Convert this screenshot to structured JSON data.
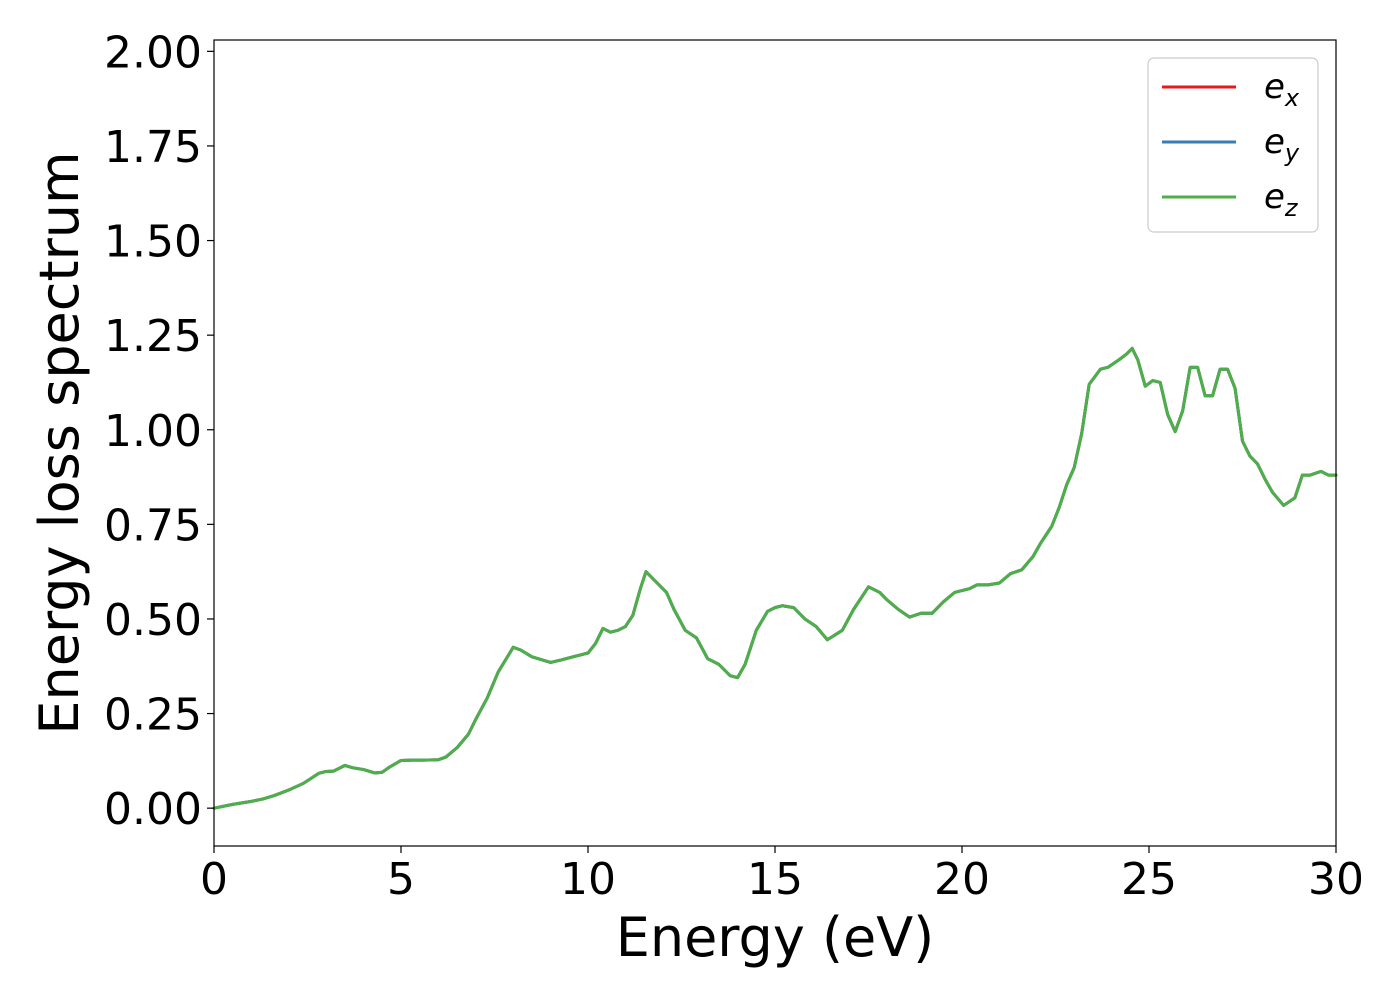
{
  "chart_data": {
    "type": "line",
    "title": "",
    "xlabel": "Energy (eV)",
    "ylabel": "Energy loss spectrum",
    "xlim": [
      0,
      30
    ],
    "ylim": [
      -0.1,
      2.03
    ],
    "x_ticks": [
      "0",
      "5",
      "10",
      "15",
      "20",
      "25",
      "30"
    ],
    "x_tick_values": [
      0,
      5,
      10,
      15,
      20,
      25,
      30
    ],
    "y_ticks": [
      "0.00",
      "0.25",
      "0.50",
      "0.75",
      "1.00",
      "1.25",
      "1.50",
      "1.75",
      "2.00"
    ],
    "y_tick_values": [
      0,
      0.25,
      0.5,
      0.75,
      1.0,
      1.25,
      1.5,
      1.75,
      2.0
    ],
    "grid": false,
    "legend_position": "top-right",
    "x": [
      0,
      0.5,
      1.0,
      1.3,
      1.6,
      2.0,
      2.4,
      2.8,
      3.0,
      3.2,
      3.5,
      3.7,
      4.0,
      4.3,
      4.5,
      4.7,
      5.0,
      5.3,
      5.6,
      6.0,
      6.2,
      6.5,
      6.8,
      7.0,
      7.3,
      7.6,
      8.0,
      8.2,
      8.5,
      9.0,
      9.3,
      9.6,
      9.8,
      10.0,
      10.2,
      10.4,
      10.6,
      10.8,
      11.0,
      11.2,
      11.4,
      11.55,
      11.8,
      12.1,
      12.3,
      12.6,
      12.9,
      13.2,
      13.5,
      13.8,
      14.0,
      14.2,
      14.5,
      14.8,
      15.0,
      15.2,
      15.5,
      15.8,
      16.1,
      16.4,
      16.8,
      17.1,
      17.5,
      17.8,
      18.0,
      18.3,
      18.6,
      18.9,
      19.2,
      19.5,
      19.8,
      20.2,
      20.4,
      20.7,
      21.0,
      21.3,
      21.6,
      21.9,
      22.1,
      22.4,
      22.6,
      22.8,
      23.0,
      23.2,
      23.4,
      23.7,
      23.9,
      24.2,
      24.4,
      24.55,
      24.7,
      24.9,
      25.1,
      25.3,
      25.5,
      25.7,
      25.9,
      26.1,
      26.3,
      26.5,
      26.7,
      26.9,
      27.1,
      27.3,
      27.5,
      27.7,
      27.9,
      28.1,
      28.3,
      28.6,
      28.9,
      29.1,
      29.3,
      29.6,
      29.8,
      30.0
    ],
    "series": [
      {
        "name": "e_x",
        "color": "#e41a1c",
        "values": [
          0,
          0.01,
          0.018,
          0.024,
          0.033,
          0.048,
          0.066,
          0.092,
          0.097,
          0.098,
          0.113,
          0.107,
          0.102,
          0.093,
          0.095,
          0.109,
          0.126,
          0.127,
          0.127,
          0.128,
          0.135,
          0.16,
          0.195,
          0.235,
          0.29,
          0.36,
          0.425,
          0.418,
          0.4,
          0.385,
          0.392,
          0.4,
          0.405,
          0.41,
          0.435,
          0.475,
          0.465,
          0.47,
          0.48,
          0.51,
          0.58,
          0.625,
          0.6,
          0.57,
          0.525,
          0.47,
          0.45,
          0.395,
          0.38,
          0.35,
          0.345,
          0.38,
          0.47,
          0.52,
          0.53,
          0.535,
          0.53,
          0.5,
          0.48,
          0.445,
          0.47,
          0.525,
          0.585,
          0.57,
          0.55,
          0.525,
          0.505,
          0.515,
          0.515,
          0.545,
          0.57,
          0.58,
          0.59,
          0.59,
          0.595,
          0.62,
          0.63,
          0.665,
          0.7,
          0.745,
          0.795,
          0.855,
          0.9,
          0.99,
          1.12,
          1.16,
          1.165,
          1.185,
          1.2,
          1.215,
          1.185,
          1.115,
          1.13,
          1.125,
          1.04,
          0.995,
          1.05,
          1.165,
          1.165,
          1.09,
          1.09,
          1.16,
          1.16,
          1.11,
          0.97,
          0.93,
          0.91,
          0.87,
          0.835,
          0.8,
          0.82,
          0.88,
          0.88,
          0.89,
          0.88,
          0.88
        ]
      },
      {
        "name": "e_y",
        "color": "#377eb8",
        "values": [
          0,
          0.01,
          0.018,
          0.024,
          0.033,
          0.048,
          0.066,
          0.092,
          0.097,
          0.098,
          0.113,
          0.107,
          0.102,
          0.093,
          0.095,
          0.109,
          0.126,
          0.127,
          0.127,
          0.128,
          0.135,
          0.16,
          0.195,
          0.235,
          0.29,
          0.36,
          0.425,
          0.418,
          0.4,
          0.385,
          0.392,
          0.4,
          0.405,
          0.41,
          0.435,
          0.475,
          0.465,
          0.47,
          0.48,
          0.51,
          0.58,
          0.625,
          0.6,
          0.57,
          0.525,
          0.47,
          0.45,
          0.395,
          0.38,
          0.35,
          0.345,
          0.38,
          0.47,
          0.52,
          0.53,
          0.535,
          0.53,
          0.5,
          0.48,
          0.445,
          0.47,
          0.525,
          0.585,
          0.57,
          0.55,
          0.525,
          0.505,
          0.515,
          0.515,
          0.545,
          0.57,
          0.58,
          0.59,
          0.59,
          0.595,
          0.62,
          0.63,
          0.665,
          0.7,
          0.745,
          0.795,
          0.855,
          0.9,
          0.99,
          1.12,
          1.16,
          1.165,
          1.185,
          1.2,
          1.215,
          1.185,
          1.115,
          1.13,
          1.125,
          1.04,
          0.995,
          1.05,
          1.165,
          1.165,
          1.09,
          1.09,
          1.16,
          1.16,
          1.11,
          0.97,
          0.93,
          0.91,
          0.87,
          0.835,
          0.8,
          0.82,
          0.88,
          0.88,
          0.89,
          0.88,
          0.88
        ]
      },
      {
        "name": "e_z",
        "color": "#4daf4a",
        "values": [
          0,
          0.01,
          0.018,
          0.024,
          0.033,
          0.048,
          0.066,
          0.092,
          0.097,
          0.098,
          0.113,
          0.107,
          0.102,
          0.093,
          0.095,
          0.109,
          0.126,
          0.127,
          0.127,
          0.128,
          0.135,
          0.16,
          0.195,
          0.235,
          0.29,
          0.36,
          0.425,
          0.418,
          0.4,
          0.385,
          0.392,
          0.4,
          0.405,
          0.41,
          0.435,
          0.475,
          0.465,
          0.47,
          0.48,
          0.51,
          0.58,
          0.625,
          0.6,
          0.57,
          0.525,
          0.47,
          0.45,
          0.395,
          0.38,
          0.35,
          0.345,
          0.38,
          0.47,
          0.52,
          0.53,
          0.535,
          0.53,
          0.5,
          0.48,
          0.445,
          0.47,
          0.525,
          0.585,
          0.57,
          0.55,
          0.525,
          0.505,
          0.515,
          0.515,
          0.545,
          0.57,
          0.58,
          0.59,
          0.59,
          0.595,
          0.62,
          0.63,
          0.665,
          0.7,
          0.745,
          0.795,
          0.855,
          0.9,
          0.99,
          1.12,
          1.16,
          1.165,
          1.185,
          1.2,
          1.215,
          1.185,
          1.115,
          1.13,
          1.125,
          1.04,
          0.995,
          1.05,
          1.165,
          1.165,
          1.09,
          1.09,
          1.16,
          1.16,
          1.11,
          0.97,
          0.93,
          0.91,
          0.87,
          0.835,
          0.8,
          0.82,
          0.88,
          0.88,
          0.89,
          0.88,
          0.88
        ]
      }
    ],
    "legend": [
      {
        "base": "e",
        "sub": "x",
        "color": "#e41a1c"
      },
      {
        "base": "e",
        "sub": "y",
        "color": "#377eb8"
      },
      {
        "base": "e",
        "sub": "z",
        "color": "#4daf4a"
      }
    ]
  }
}
